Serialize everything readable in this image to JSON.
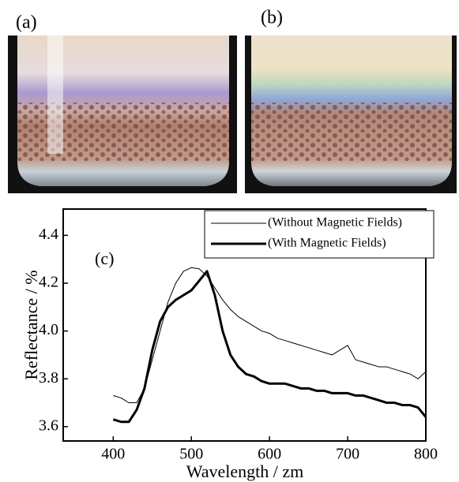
{
  "panels": [
    {
      "label": "(a)"
    },
    {
      "label": "(b)"
    }
  ],
  "chart_data": {
    "type": "line",
    "annotation": "(c)",
    "x_label": "Wavelength / zm",
    "y_label": "Reflectance / %",
    "x": [
      400,
      410,
      420,
      430,
      440,
      450,
      460,
      470,
      480,
      490,
      500,
      510,
      520,
      530,
      540,
      550,
      560,
      570,
      580,
      590,
      600,
      610,
      620,
      630,
      640,
      650,
      660,
      670,
      680,
      690,
      700,
      710,
      720,
      730,
      740,
      750,
      760,
      770,
      780,
      790,
      800
    ],
    "series": [
      {
        "name": "(Without Magnetic Fields)",
        "color": "#000000",
        "width": 1,
        "values": [
          3.73,
          3.72,
          3.7,
          3.7,
          3.76,
          3.88,
          4.0,
          4.12,
          4.2,
          4.25,
          4.265,
          4.26,
          4.23,
          4.18,
          4.13,
          4.09,
          4.06,
          4.04,
          4.02,
          4.0,
          3.99,
          3.97,
          3.96,
          3.95,
          3.94,
          3.93,
          3.92,
          3.91,
          3.9,
          3.92,
          3.94,
          3.88,
          3.87,
          3.86,
          3.85,
          3.85,
          3.84,
          3.83,
          3.82,
          3.8,
          3.83
        ]
      },
      {
        "name": "(With Magnetic Fields)",
        "color": "#000000",
        "width": 3,
        "values": [
          3.63,
          3.62,
          3.62,
          3.67,
          3.76,
          3.92,
          4.04,
          4.1,
          4.13,
          4.15,
          4.17,
          4.21,
          4.25,
          4.15,
          4.0,
          3.9,
          3.85,
          3.82,
          3.81,
          3.79,
          3.78,
          3.78,
          3.78,
          3.77,
          3.76,
          3.76,
          3.75,
          3.75,
          3.74,
          3.74,
          3.74,
          3.73,
          3.73,
          3.72,
          3.71,
          3.7,
          3.7,
          3.69,
          3.69,
          3.68,
          3.64
        ]
      }
    ],
    "xlim": [
      336,
      800
    ],
    "xticks": [
      400,
      500,
      600,
      700,
      800
    ],
    "ylim": [
      3.54,
      4.51
    ],
    "yticks": [
      {
        "value": 3.6,
        "label": "3.6"
      },
      {
        "value": 3.8,
        "label": "3.8"
      },
      {
        "value": 4,
        "label": "4.0"
      },
      {
        "value": 4.2,
        "label": "4.2"
      },
      {
        "value": 4.4,
        "label": "4.4"
      }
    ],
    "legend": "upper right",
    "grid": false
  }
}
